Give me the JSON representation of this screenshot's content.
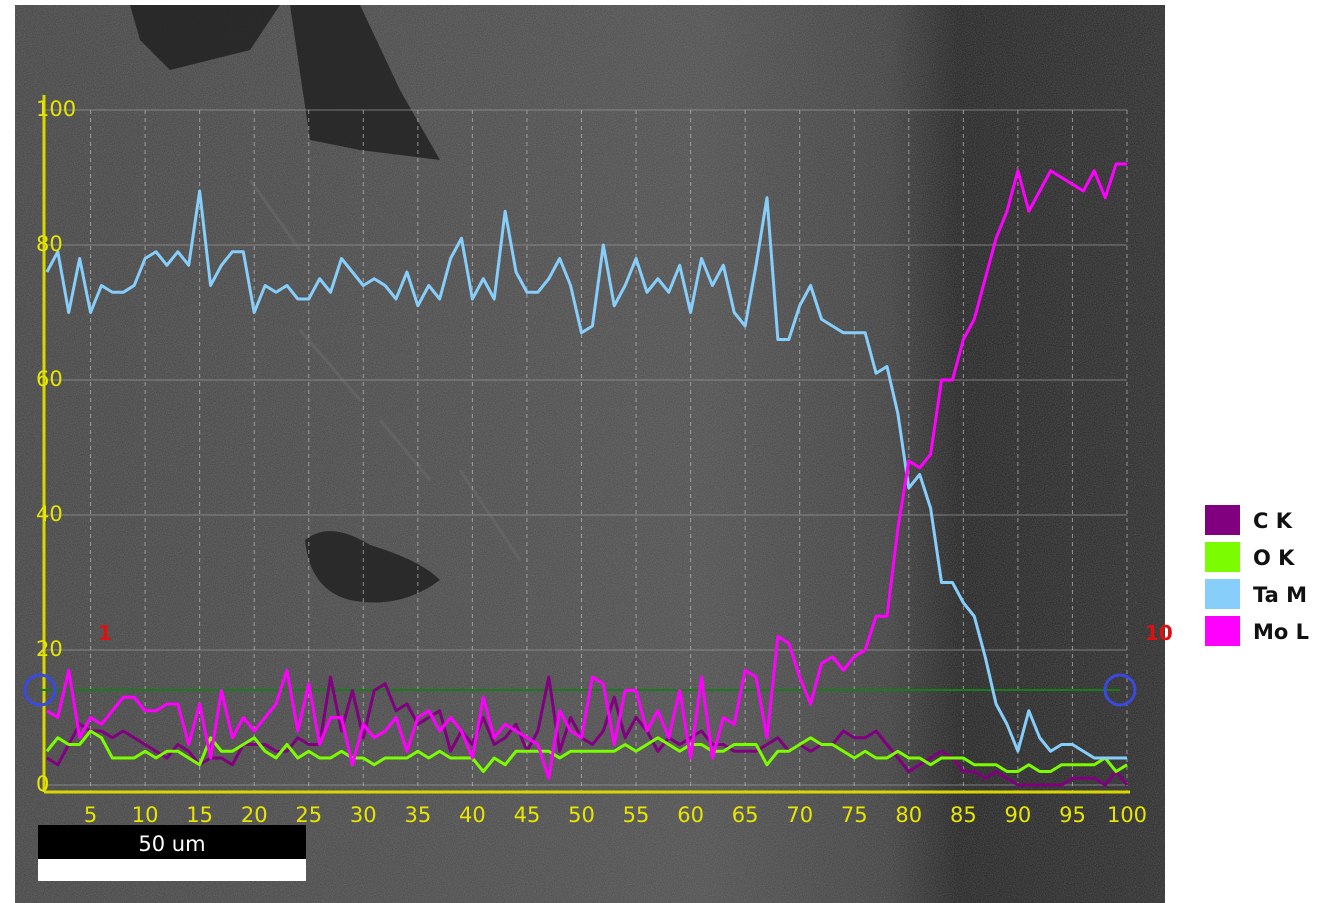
{
  "chart_data": {
    "type": "line",
    "xlim": [
      0,
      100
    ],
    "ylim": [
      0,
      100
    ],
    "xticks": [
      5,
      10,
      15,
      20,
      25,
      30,
      35,
      40,
      45,
      50,
      55,
      60,
      65,
      70,
      75,
      80,
      85,
      90,
      95,
      100
    ],
    "yticks": [
      0,
      20,
      40,
      60,
      80,
      100
    ],
    "grid": true,
    "legend": "right",
    "annotations": [
      "1",
      "10"
    ],
    "scale_bar": "50 um",
    "x": [
      1,
      2,
      3,
      4,
      5,
      6,
      7,
      8,
      9,
      10,
      11,
      12,
      13,
      14,
      15,
      16,
      17,
      18,
      19,
      20,
      21,
      22,
      23,
      24,
      25,
      26,
      27,
      28,
      29,
      30,
      31,
      32,
      33,
      34,
      35,
      36,
      37,
      38,
      39,
      40,
      41,
      42,
      43,
      44,
      45,
      46,
      47,
      48,
      49,
      50,
      51,
      52,
      53,
      54,
      55,
      56,
      57,
      58,
      59,
      60,
      61,
      62,
      63,
      64,
      65,
      66,
      67,
      68,
      69,
      70,
      71,
      72,
      73,
      74,
      75,
      76,
      77,
      78,
      79,
      80,
      81,
      82,
      83,
      84,
      85,
      86,
      87,
      88,
      89,
      90,
      91,
      92,
      93,
      94,
      95,
      96,
      97,
      98,
      99,
      100
    ],
    "series": [
      {
        "name": "C K",
        "color": "#800080",
        "values": [
          4,
          3,
          6,
          9,
          8,
          8,
          7,
          8,
          7,
          6,
          5,
          4,
          6,
          5,
          3,
          4,
          4,
          3,
          6,
          6,
          6,
          5,
          5,
          7,
          6,
          6,
          16,
          8,
          14,
          7,
          14,
          15,
          11,
          12,
          9,
          10,
          11,
          5,
          8,
          6,
          10,
          6,
          7,
          9,
          5,
          8,
          16,
          5,
          10,
          7,
          6,
          8,
          13,
          7,
          10,
          8,
          5,
          7,
          6,
          7,
          8,
          6,
          6,
          5,
          5,
          5,
          6,
          7,
          5,
          6,
          5,
          6,
          6,
          8,
          7,
          7,
          8,
          6,
          4,
          2,
          3,
          4,
          5,
          4,
          2,
          2,
          1,
          2,
          1,
          0,
          0,
          0,
          0,
          0,
          1,
          1,
          1,
          0,
          2,
          0
        ]
      },
      {
        "name": "O K",
        "color": "#7cfc00",
        "values": [
          5,
          7,
          6,
          6,
          8,
          7,
          4,
          4,
          4,
          5,
          4,
          5,
          5,
          4,
          3,
          7,
          5,
          5,
          6,
          7,
          5,
          4,
          6,
          4,
          5,
          4,
          4,
          5,
          4,
          4,
          3,
          4,
          4,
          4,
          5,
          4,
          5,
          4,
          4,
          4,
          2,
          4,
          3,
          5,
          5,
          5,
          5,
          4,
          5,
          5,
          5,
          5,
          5,
          6,
          5,
          6,
          7,
          6,
          5,
          6,
          6,
          5,
          5,
          6,
          6,
          6,
          3,
          5,
          5,
          6,
          7,
          6,
          6,
          5,
          4,
          5,
          4,
          4,
          5,
          4,
          4,
          3,
          4,
          4,
          4,
          3,
          3,
          3,
          2,
          2,
          3,
          2,
          2,
          3,
          3,
          3,
          3,
          4,
          2,
          3
        ]
      },
      {
        "name": "Ta M",
        "color": "#87cefa",
        "values": [
          76,
          79,
          70,
          78,
          70,
          74,
          73,
          73,
          74,
          78,
          79,
          77,
          79,
          77,
          88,
          74,
          77,
          79,
          79,
          70,
          74,
          73,
          74,
          72,
          72,
          75,
          73,
          78,
          76,
          74,
          75,
          74,
          72,
          76,
          71,
          74,
          72,
          78,
          81,
          72,
          75,
          72,
          85,
          76,
          73,
          73,
          75,
          78,
          74,
          67,
          68,
          80,
          71,
          74,
          78,
          73,
          75,
          73,
          77,
          70,
          78,
          74,
          77,
          70,
          68,
          77,
          87,
          66,
          66,
          71,
          74,
          69,
          68,
          67,
          67,
          67,
          61,
          62,
          55,
          44,
          46,
          41,
          30,
          30,
          27,
          25,
          19,
          12,
          9,
          5,
          11,
          7,
          5,
          6,
          6,
          5,
          4,
          4,
          4,
          4
        ]
      },
      {
        "name": "Mo L",
        "color": "#ff00ff",
        "values": [
          11,
          10,
          17,
          7,
          10,
          9,
          11,
          13,
          13,
          11,
          11,
          12,
          12,
          6,
          12,
          4,
          14,
          7,
          10,
          8,
          10,
          12,
          17,
          8,
          15,
          6,
          10,
          10,
          3,
          9,
          7,
          8,
          10,
          5,
          10,
          11,
          8,
          10,
          8,
          4,
          13,
          7,
          9,
          8,
          7,
          6,
          1,
          11,
          8,
          7,
          16,
          15,
          6,
          14,
          14,
          8,
          11,
          7,
          14,
          4,
          16,
          4,
          10,
          9,
          17,
          16,
          7,
          22,
          21,
          16,
          12,
          18,
          19,
          17,
          19,
          20,
          25,
          25,
          38,
          48,
          47,
          49,
          60,
          60,
          66,
          69,
          75,
          81,
          85,
          91,
          85,
          88,
          91,
          90,
          89,
          88,
          91,
          87,
          92,
          92
        ]
      }
    ]
  }
}
